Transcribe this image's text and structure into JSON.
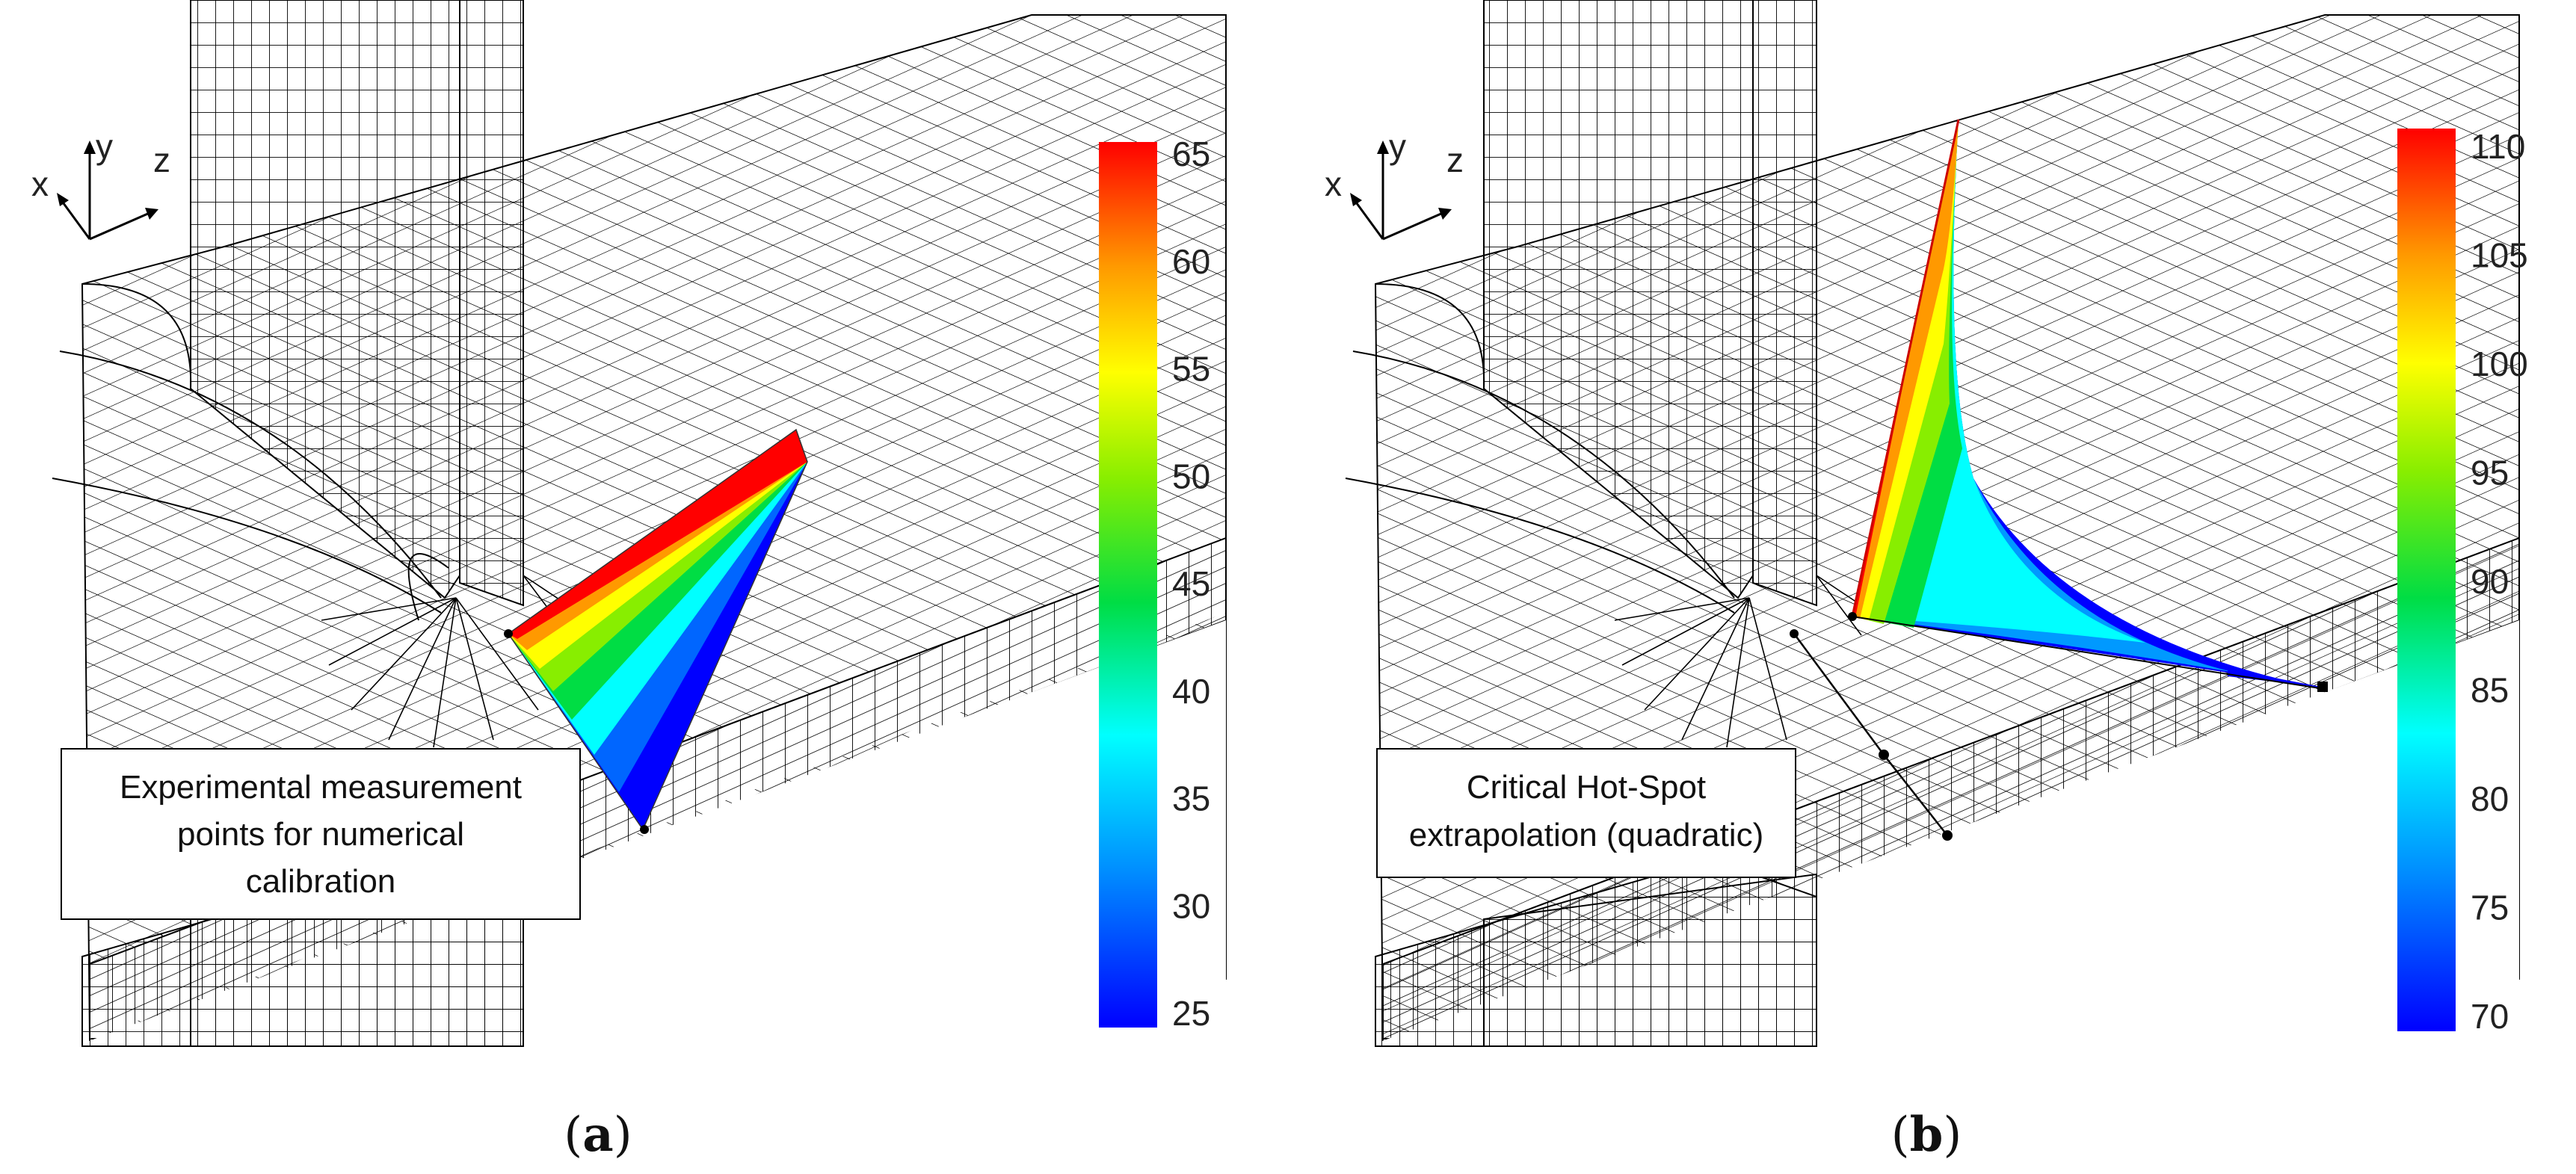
{
  "panels": [
    {
      "id": "a",
      "caption_letter": "a",
      "label_lines": [
        "Experimental measurement",
        "points for numerical",
        "calibration"
      ],
      "colorbar_ticks": [
        "65",
        "60",
        "55",
        "50",
        "45",
        "40",
        "35",
        "30",
        "25"
      ],
      "axes": {
        "x": "x",
        "y": "y",
        "z": "z"
      }
    },
    {
      "id": "b",
      "caption_letter": "b",
      "label_lines": [
        "Critical Hot-Spot",
        "extrapolation (quadratic)"
      ],
      "colorbar_ticks": [
        "110",
        "105",
        "100",
        "95",
        "90",
        "85",
        "80",
        "75",
        "70"
      ],
      "axes": {
        "x": "x",
        "y": "y",
        "z": "z"
      }
    }
  ],
  "colors": {
    "mesh": "#000000",
    "red": "#ff0000",
    "orange": "#ff8c00",
    "yellow": "#ffff00",
    "green": "#00cc33",
    "cyan": "#00ffff",
    "blue": "#0000ff"
  }
}
